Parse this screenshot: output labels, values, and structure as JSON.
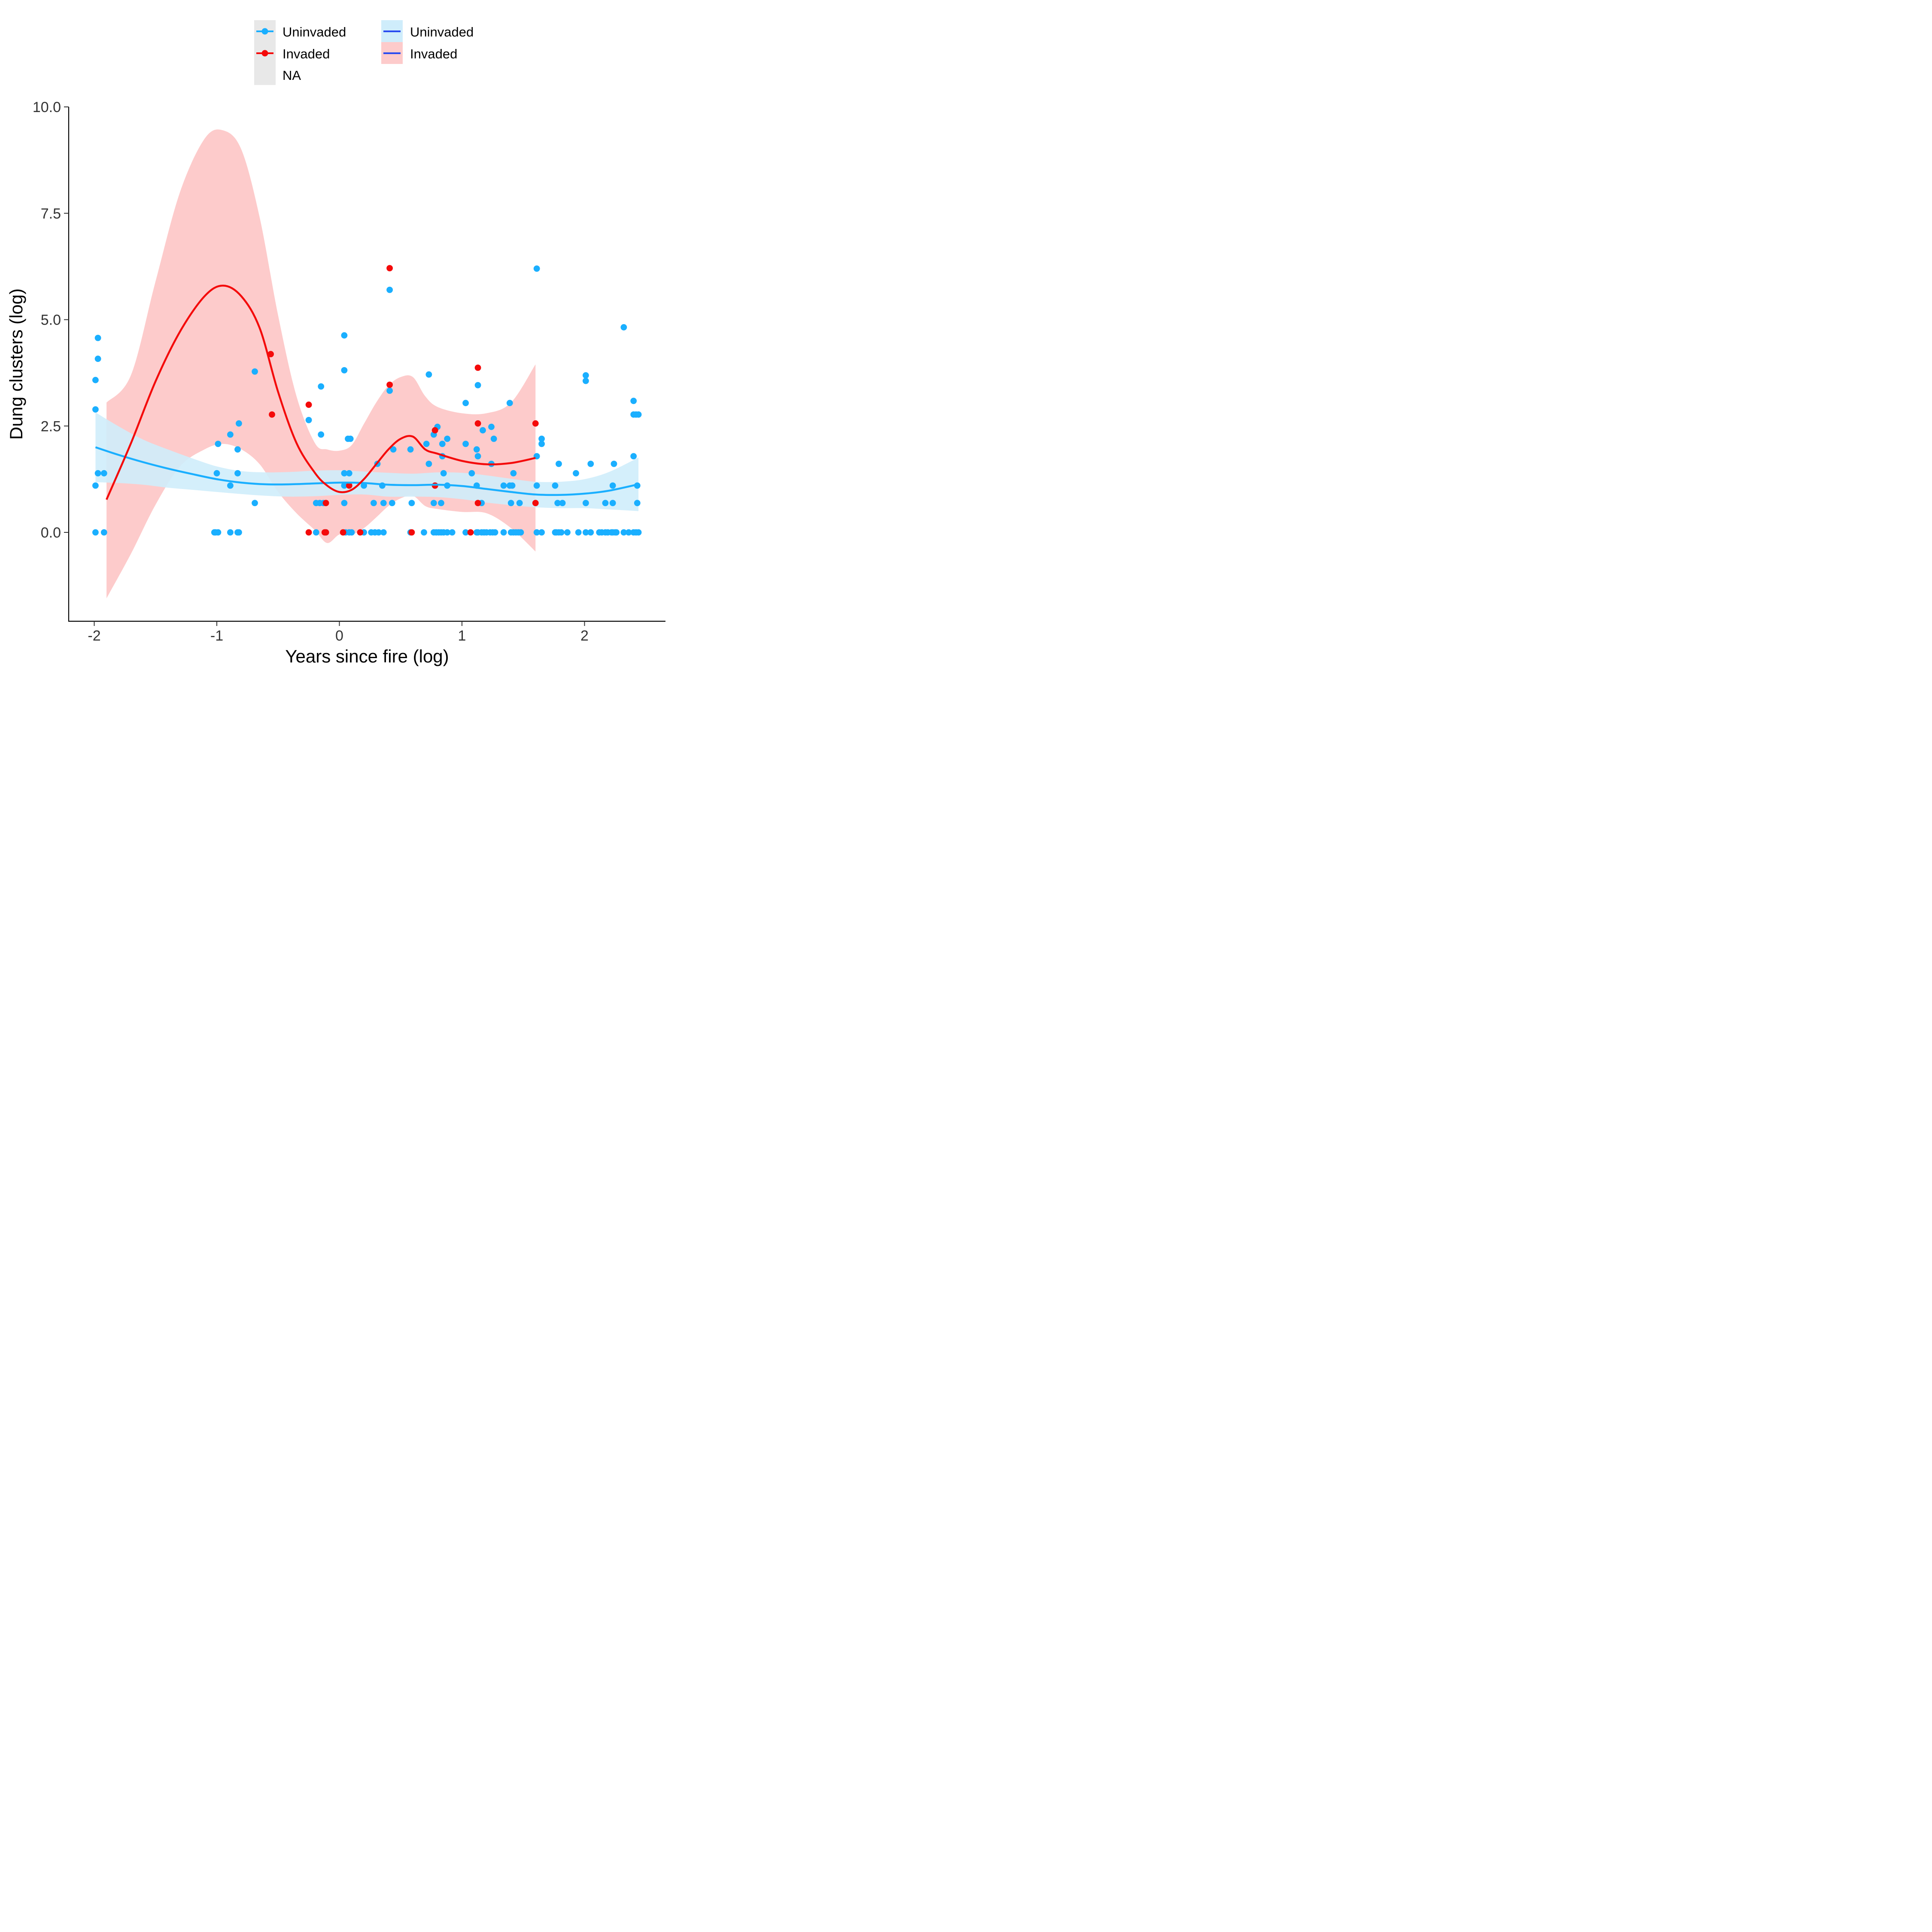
{
  "chart_data": {
    "type": "scatter",
    "xlabel": "Years since fire (log)",
    "ylabel": "Dung clusters (log)",
    "xlim": [
      -2.2,
      2.62
    ],
    "ylim": [
      -1.85,
      10.0
    ],
    "x_ticks": [
      {
        "value": -2,
        "label": "-2"
      },
      {
        "value": -1,
        "label": "-1"
      },
      {
        "value": 0,
        "label": "0"
      },
      {
        "value": 1,
        "label": "1"
      },
      {
        "value": 2,
        "label": "2"
      }
    ],
    "y_ticks": [
      {
        "value": 0,
        "label": "0.0"
      },
      {
        "value": 2.5,
        "label": "2.5"
      },
      {
        "value": 5,
        "label": "5.0"
      },
      {
        "value": 7.5,
        "label": "7.5"
      },
      {
        "value": 10,
        "label": "10.0"
      }
    ],
    "grid": false,
    "legend_position": "top",
    "legend": {
      "points": [
        {
          "label": "Uninvaded",
          "color": "#1AAFFF"
        },
        {
          "label": "Invaded",
          "color": "#F40A0A"
        },
        {
          "label": "NA",
          "color": null
        }
      ],
      "smooth": [
        {
          "label": "Uninvaded",
          "band_color": "#CFEDFB"
        },
        {
          "label": "Invaded",
          "band_color": "#FDCBCB"
        }
      ],
      "smooth_line_color": "#2A4CF0",
      "points_key_bg": "#E8E8E8"
    },
    "series": [
      {
        "name": "Uninvaded",
        "kind": "points",
        "color": "#1AAFFF",
        "points": [
          [
            -1.99,
            0
          ],
          [
            -1.99,
            1.1
          ],
          [
            -1.99,
            2.89
          ],
          [
            -1.99,
            3.58
          ],
          [
            -1.97,
            1.39
          ],
          [
            -1.97,
            4.08
          ],
          [
            -1.97,
            4.57
          ],
          [
            -1.92,
            0
          ],
          [
            -1.92,
            1.39
          ],
          [
            -1.02,
            0
          ],
          [
            -1.01,
            0
          ],
          [
            -1.0,
            1.39
          ],
          [
            -0.99,
            0
          ],
          [
            -0.99,
            2.08
          ],
          [
            -0.89,
            0
          ],
          [
            -0.89,
            1.1
          ],
          [
            -0.89,
            2.3
          ],
          [
            -0.83,
            0
          ],
          [
            -0.83,
            1.39
          ],
          [
            -0.83,
            1.95
          ],
          [
            -0.82,
            0
          ],
          [
            -0.82,
            2.56
          ],
          [
            -0.69,
            0.69
          ],
          [
            -0.69,
            3.78
          ],
          [
            -0.25,
            2.64
          ],
          [
            -0.19,
            0
          ],
          [
            -0.19,
            0.69
          ],
          [
            -0.16,
            0.69
          ],
          [
            -0.15,
            2.3
          ],
          [
            -0.15,
            3.43
          ],
          [
            -0.13,
            0.69
          ],
          [
            -0.11,
            0
          ],
          [
            0.04,
            0.69
          ],
          [
            0.04,
            1.1
          ],
          [
            0.04,
            1.39
          ],
          [
            0.04,
            3.81
          ],
          [
            0.04,
            4.63
          ],
          [
            0.05,
            0
          ],
          [
            0.07,
            2.2
          ],
          [
            0.08,
            1.39
          ],
          [
            0.08,
            0
          ],
          [
            0.09,
            2.2
          ],
          [
            0.1,
            0
          ],
          [
            0.2,
            0
          ],
          [
            0.2,
            1.1
          ],
          [
            0.26,
            0
          ],
          [
            0.28,
            0.69
          ],
          [
            0.29,
            0
          ],
          [
            0.31,
            1.61
          ],
          [
            0.32,
            0
          ],
          [
            0.35,
            1.1
          ],
          [
            0.36,
            0.69
          ],
          [
            0.36,
            0
          ],
          [
            0.41,
            3.33
          ],
          [
            0.41,
            5.7
          ],
          [
            0.43,
            0.69
          ],
          [
            0.44,
            1.95
          ],
          [
            0.58,
            0
          ],
          [
            0.58,
            1.95
          ],
          [
            0.59,
            0.69
          ],
          [
            0.69,
            0
          ],
          [
            0.71,
            2.08
          ],
          [
            0.73,
            1.61
          ],
          [
            0.73,
            3.71
          ],
          [
            0.77,
            0
          ],
          [
            0.77,
            0.69
          ],
          [
            0.77,
            2.3
          ],
          [
            0.78,
            1.1
          ],
          [
            0.79,
            0
          ],
          [
            0.8,
            2.48
          ],
          [
            0.81,
            0
          ],
          [
            0.83,
            0
          ],
          [
            0.83,
            0.69
          ],
          [
            0.84,
            1.79
          ],
          [
            0.84,
            2.08
          ],
          [
            0.85,
            0
          ],
          [
            0.85,
            1.39
          ],
          [
            0.88,
            0
          ],
          [
            0.88,
            1.1
          ],
          [
            0.88,
            2.2
          ],
          [
            0.92,
            0
          ],
          [
            1.03,
            0
          ],
          [
            1.03,
            2.08
          ],
          [
            1.03,
            3.04
          ],
          [
            1.08,
            1.39
          ],
          [
            1.12,
            0
          ],
          [
            1.12,
            1.1
          ],
          [
            1.12,
            1.95
          ],
          [
            1.13,
            0
          ],
          [
            1.13,
            1.79
          ],
          [
            1.13,
            3.46
          ],
          [
            1.16,
            0
          ],
          [
            1.16,
            0.69
          ],
          [
            1.17,
            2.4
          ],
          [
            1.18,
            0
          ],
          [
            1.2,
            0
          ],
          [
            1.23,
            0
          ],
          [
            1.24,
            1.61
          ],
          [
            1.24,
            2.48
          ],
          [
            1.25,
            0
          ],
          [
            1.26,
            2.2
          ],
          [
            1.27,
            0
          ],
          [
            1.34,
            0
          ],
          [
            1.34,
            1.1
          ],
          [
            1.39,
            1.1
          ],
          [
            1.39,
            3.04
          ],
          [
            1.4,
            0
          ],
          [
            1.4,
            0.69
          ],
          [
            1.41,
            1.1
          ],
          [
            1.42,
            0
          ],
          [
            1.42,
            1.39
          ],
          [
            1.44,
            0
          ],
          [
            1.46,
            0
          ],
          [
            1.47,
            0.69
          ],
          [
            1.48,
            0
          ],
          [
            1.61,
            0
          ],
          [
            1.61,
            1.1
          ],
          [
            1.61,
            1.79
          ],
          [
            1.61,
            6.2
          ],
          [
            1.65,
            0
          ],
          [
            1.65,
            2.08
          ],
          [
            1.65,
            2.2
          ],
          [
            1.76,
            0
          ],
          [
            1.76,
            1.1
          ],
          [
            1.77,
            0
          ],
          [
            1.78,
            0.69
          ],
          [
            1.79,
            0
          ],
          [
            1.79,
            1.61
          ],
          [
            1.81,
            0
          ],
          [
            1.82,
            0.69
          ],
          [
            1.86,
            0
          ],
          [
            1.93,
            1.39
          ],
          [
            1.95,
            0
          ],
          [
            2.01,
            0
          ],
          [
            2.01,
            0.69
          ],
          [
            2.01,
            3.56
          ],
          [
            2.01,
            3.69
          ],
          [
            2.05,
            0
          ],
          [
            2.05,
            1.61
          ],
          [
            2.12,
            0
          ],
          [
            2.14,
            0
          ],
          [
            2.17,
            0
          ],
          [
            2.17,
            0.69
          ],
          [
            2.19,
            0
          ],
          [
            2.22,
            0
          ],
          [
            2.23,
            0
          ],
          [
            2.23,
            0.69
          ],
          [
            2.23,
            1.1
          ],
          [
            2.24,
            1.61
          ],
          [
            2.25,
            0
          ],
          [
            2.26,
            0
          ],
          [
            2.32,
            0
          ],
          [
            2.32,
            4.82
          ],
          [
            2.36,
            0
          ],
          [
            2.4,
            0
          ],
          [
            2.4,
            1.79
          ],
          [
            2.4,
            2.77
          ],
          [
            2.4,
            3.09
          ],
          [
            2.42,
            0
          ],
          [
            2.42,
            2.77
          ],
          [
            2.43,
            0.69
          ],
          [
            2.43,
            1.1
          ],
          [
            2.44,
            0
          ],
          [
            2.44,
            2.77
          ]
        ]
      },
      {
        "name": "Invaded",
        "kind": "points",
        "color": "#F40A0A",
        "points": [
          [
            -0.55,
            2.77
          ],
          [
            -0.56,
            4.19
          ],
          [
            -0.25,
            0
          ],
          [
            -0.25,
            3.0
          ],
          [
            -0.12,
            0
          ],
          [
            -0.11,
            0
          ],
          [
            -0.11,
            0.69
          ],
          [
            0.03,
            0
          ],
          [
            0.08,
            1.1
          ],
          [
            0.17,
            0
          ],
          [
            0.41,
            3.47
          ],
          [
            0.41,
            6.21
          ],
          [
            0.59,
            0
          ],
          [
            0.78,
            2.4
          ],
          [
            0.78,
            1.1
          ],
          [
            1.07,
            0
          ],
          [
            1.13,
            0.69
          ],
          [
            1.13,
            2.56
          ],
          [
            1.13,
            3.87
          ],
          [
            1.6,
            0.69
          ],
          [
            1.6,
            2.56
          ]
        ]
      },
      {
        "name": "Uninvaded",
        "kind": "smooth",
        "color": "#1AAFFF",
        "band_color": "#CFEDFB",
        "x": [
          -1.99,
          -1.8,
          -1.6,
          -1.4,
          -1.2,
          -1.0,
          -0.8,
          -0.6,
          -0.4,
          -0.2,
          0.0,
          0.2,
          0.4,
          0.6,
          0.8,
          1.0,
          1.2,
          1.4,
          1.6,
          1.8,
          2.0,
          2.2,
          2.44
        ],
        "y": [
          2.0,
          1.82,
          1.65,
          1.5,
          1.37,
          1.25,
          1.17,
          1.13,
          1.13,
          1.15,
          1.17,
          1.16,
          1.12,
          1.11,
          1.12,
          1.09,
          1.02,
          0.95,
          0.89,
          0.88,
          0.91,
          0.98,
          1.13
        ],
        "lower": [
          1.18,
          1.16,
          1.12,
          1.05,
          1.0,
          0.95,
          0.9,
          0.86,
          0.84,
          0.85,
          0.88,
          0.89,
          0.84,
          0.84,
          0.83,
          0.78,
          0.7,
          0.64,
          0.59,
          0.57,
          0.57,
          0.54,
          0.5
        ],
        "upper": [
          2.82,
          2.49,
          2.18,
          1.95,
          1.74,
          1.55,
          1.44,
          1.41,
          1.42,
          1.45,
          1.46,
          1.43,
          1.4,
          1.38,
          1.41,
          1.4,
          1.34,
          1.26,
          1.19,
          1.19,
          1.25,
          1.42,
          1.76
        ]
      },
      {
        "name": "Invaded",
        "kind": "smooth",
        "color": "#F40A0A",
        "band_color": "#FDCBCB",
        "x": [
          -1.9,
          -1.7,
          -1.5,
          -1.3,
          -1.1,
          -0.95,
          -0.8,
          -0.65,
          -0.5,
          -0.35,
          -0.2,
          -0.1,
          0.0,
          0.1,
          0.2,
          0.3,
          0.4,
          0.5,
          0.6,
          0.7,
          0.8,
          1.0,
          1.2,
          1.4,
          1.6
        ],
        "y": [
          0.77,
          2.1,
          3.55,
          4.72,
          5.55,
          5.8,
          5.55,
          4.8,
          3.3,
          2.1,
          1.4,
          1.1,
          0.95,
          1.0,
          1.25,
          1.6,
          1.95,
          2.2,
          2.25,
          1.95,
          1.85,
          1.68,
          1.6,
          1.63,
          1.75
        ],
        "lower": [
          -1.55,
          -0.5,
          0.65,
          1.55,
          1.95,
          2.08,
          1.95,
          1.6,
          0.95,
          0.45,
          0.05,
          -0.25,
          -0.05,
          -0.05,
          0.1,
          0.35,
          0.62,
          0.8,
          0.86,
          0.62,
          0.55,
          0.48,
          0.45,
          0.1,
          -0.45
        ],
        "upper": [
          3.05,
          3.7,
          5.9,
          8.0,
          9.25,
          9.45,
          9.0,
          7.4,
          5.1,
          3.2,
          2.1,
          1.95,
          1.92,
          2.05,
          2.55,
          3.05,
          3.45,
          3.65,
          3.65,
          3.2,
          2.95,
          2.8,
          2.8,
          3.05,
          3.95
        ]
      }
    ]
  }
}
